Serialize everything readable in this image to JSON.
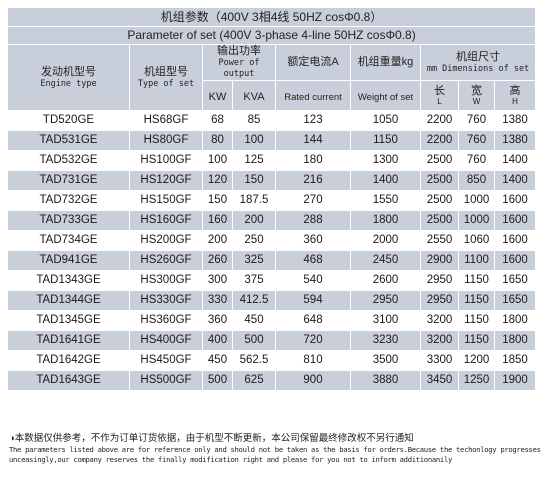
{
  "title_cn": "机组参数（400V 3相4线 50HZ cosΦ0.8）",
  "title_en": "Parameter of set (400V 3-phase 4-line 50HZ cosΦ0.8)",
  "headers": {
    "engine_cn": "发动机型号",
    "engine_en": "Engine type",
    "set_cn": "机组型号",
    "set_en": "Type of set",
    "power_cn": "输出功率",
    "power_en": "Power of output",
    "kw": "KW",
    "kva": "KVA",
    "current_cn": "额定电流A",
    "current_en": "Rated current",
    "weight_cn": "机组重量kg",
    "weight_en": "Weight of set",
    "dim_cn": "机组尺寸",
    "dim_en": "mm Dimensions of set",
    "len_cn": "长",
    "len_en": "L",
    "wid_cn": "宽",
    "wid_en": "W",
    "hgt_cn": "高",
    "hgt_en": "H"
  },
  "rows": [
    [
      "TD520GE",
      "HS68GF",
      "68",
      "85",
      "123",
      "1050",
      "2200",
      "760",
      "1380"
    ],
    [
      "TAD531GE",
      "HS80GF",
      "80",
      "100",
      "144",
      "1150",
      "2200",
      "760",
      "1380"
    ],
    [
      "TAD532GE",
      "HS100GF",
      "100",
      "125",
      "180",
      "1300",
      "2500",
      "760",
      "1400"
    ],
    [
      "TAD731GE",
      "HS120GF",
      "120",
      "150",
      "216",
      "1400",
      "2500",
      "850",
      "1400"
    ],
    [
      "TAD732GE",
      "HS150GF",
      "150",
      "187.5",
      "270",
      "1550",
      "2500",
      "1000",
      "1600"
    ],
    [
      "TAD733GE",
      "HS160GF",
      "160",
      "200",
      "288",
      "1800",
      "2500",
      "1000",
      "1600"
    ],
    [
      "TAD734GE",
      "HS200GF",
      "200",
      "250",
      "360",
      "2000",
      "2550",
      "1060",
      "1600"
    ],
    [
      "TAD941GE",
      "HS260GF",
      "260",
      "325",
      "468",
      "2450",
      "2900",
      "1100",
      "1600"
    ],
    [
      "TAD1343GE",
      "HS300GF",
      "300",
      "375",
      "540",
      "2600",
      "2950",
      "1150",
      "1650"
    ],
    [
      "TAD1344GE",
      "HS330GF",
      "330",
      "412.5",
      "594",
      "2950",
      "2950",
      "1150",
      "1650"
    ],
    [
      "TAD1345GE",
      "HS360GF",
      "360",
      "450",
      "648",
      "3100",
      "3200",
      "1150",
      "1800"
    ],
    [
      "TAD1641GE",
      "HS400GF",
      "400",
      "500",
      "720",
      "3230",
      "3200",
      "1150",
      "1800"
    ],
    [
      "TAD1642GE",
      "HS450GF",
      "450",
      "562.5",
      "810",
      "3500",
      "3300",
      "1200",
      "1850"
    ],
    [
      "TAD1643GE",
      "HS500GF",
      "500",
      "625",
      "900",
      "3880",
      "3450",
      "1250",
      "1900"
    ]
  ],
  "footer": {
    "cn": "本数据仅供参考，不作为订单订货依据，由于机型不断更新，本公司保留最终修改权不另行通知",
    "en1": "The parameters listed above are for reference only and should not be taken as the basis for orders.Because the techonlogy progresses",
    "en2": "unceasingly,our company reserves the finally modification right and please for you not to inform additionanily"
  },
  "colors": {
    "band": "#c9cfda",
    "text": "#1a1a1a"
  }
}
